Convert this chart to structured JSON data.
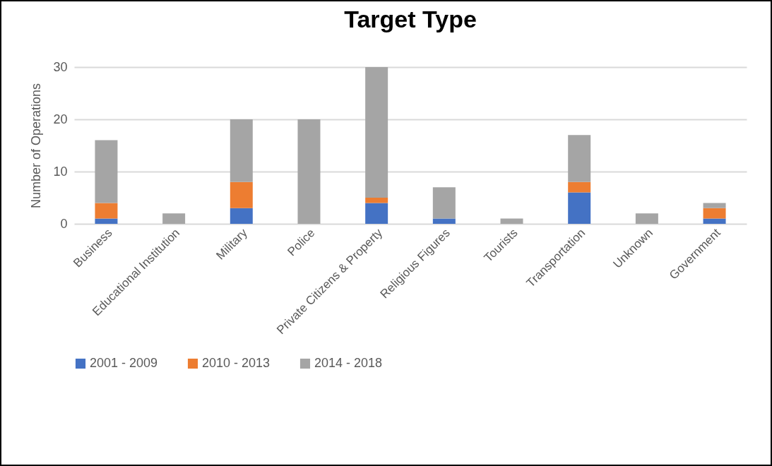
{
  "chart_data": {
    "type": "bar",
    "title": "Target Type",
    "ylabel": "Number of Operations",
    "categories": [
      "Business",
      "Educational Institution",
      "Military",
      "Police",
      "Private Citizens & Property",
      "Religious Figures",
      "Tourists",
      "Transportation",
      "Unknown",
      "Government"
    ],
    "series": [
      {
        "name": "2001 - 2009",
        "color": "#4472c4",
        "values": [
          1,
          0,
          3,
          0,
          4,
          1,
          0,
          6,
          0,
          1
        ]
      },
      {
        "name": "2010 - 2013",
        "color": "#ed7d31",
        "values": [
          3,
          0,
          5,
          0,
          1,
          0,
          0,
          2,
          0,
          2
        ]
      },
      {
        "name": "2014 - 2018",
        "color": "#a5a5a5",
        "values": [
          12,
          2,
          12,
          20,
          25,
          6,
          1,
          9,
          2,
          1
        ]
      }
    ],
    "stacked": true,
    "ylim": [
      0,
      30
    ],
    "yticks": [
      0,
      10,
      20,
      30
    ],
    "grid": "y",
    "legend": "bottom"
  }
}
